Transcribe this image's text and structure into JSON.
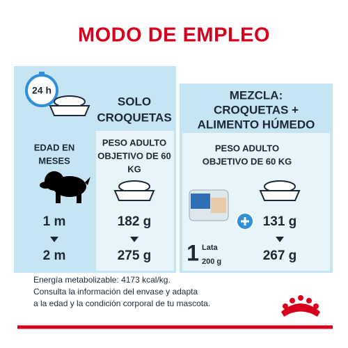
{
  "title": "MODO DE EMPLEO",
  "clock": "24 h",
  "left": {
    "header": [
      "SOLO",
      "CROQUETAS"
    ],
    "age_label": [
      "EDAD EN",
      "MESES"
    ],
    "weight_label": [
      "PESO ADULTO",
      "OBJETIVO DE 60",
      "KG"
    ],
    "ages": [
      "1 m",
      "2 m"
    ],
    "amounts": [
      "182 g",
      "275 g"
    ]
  },
  "right": {
    "header": [
      "MEZCLA:",
      "CROQUETAS +",
      "ALIMENTO HÚMEDO"
    ],
    "weight_label": [
      "PESO ADULTO",
      "OBJETIVO DE 60 KG"
    ],
    "can_count": "1",
    "can_unit": "Lata",
    "can_size": "200 g",
    "amounts": [
      "131 g",
      "267 g"
    ]
  },
  "footer": [
    "Energía metabolizable: 4173 kcal/kg.",
    "Consulta la información del envase y adapta",
    "a la edad y la condición corporal de tu mascota."
  ]
}
